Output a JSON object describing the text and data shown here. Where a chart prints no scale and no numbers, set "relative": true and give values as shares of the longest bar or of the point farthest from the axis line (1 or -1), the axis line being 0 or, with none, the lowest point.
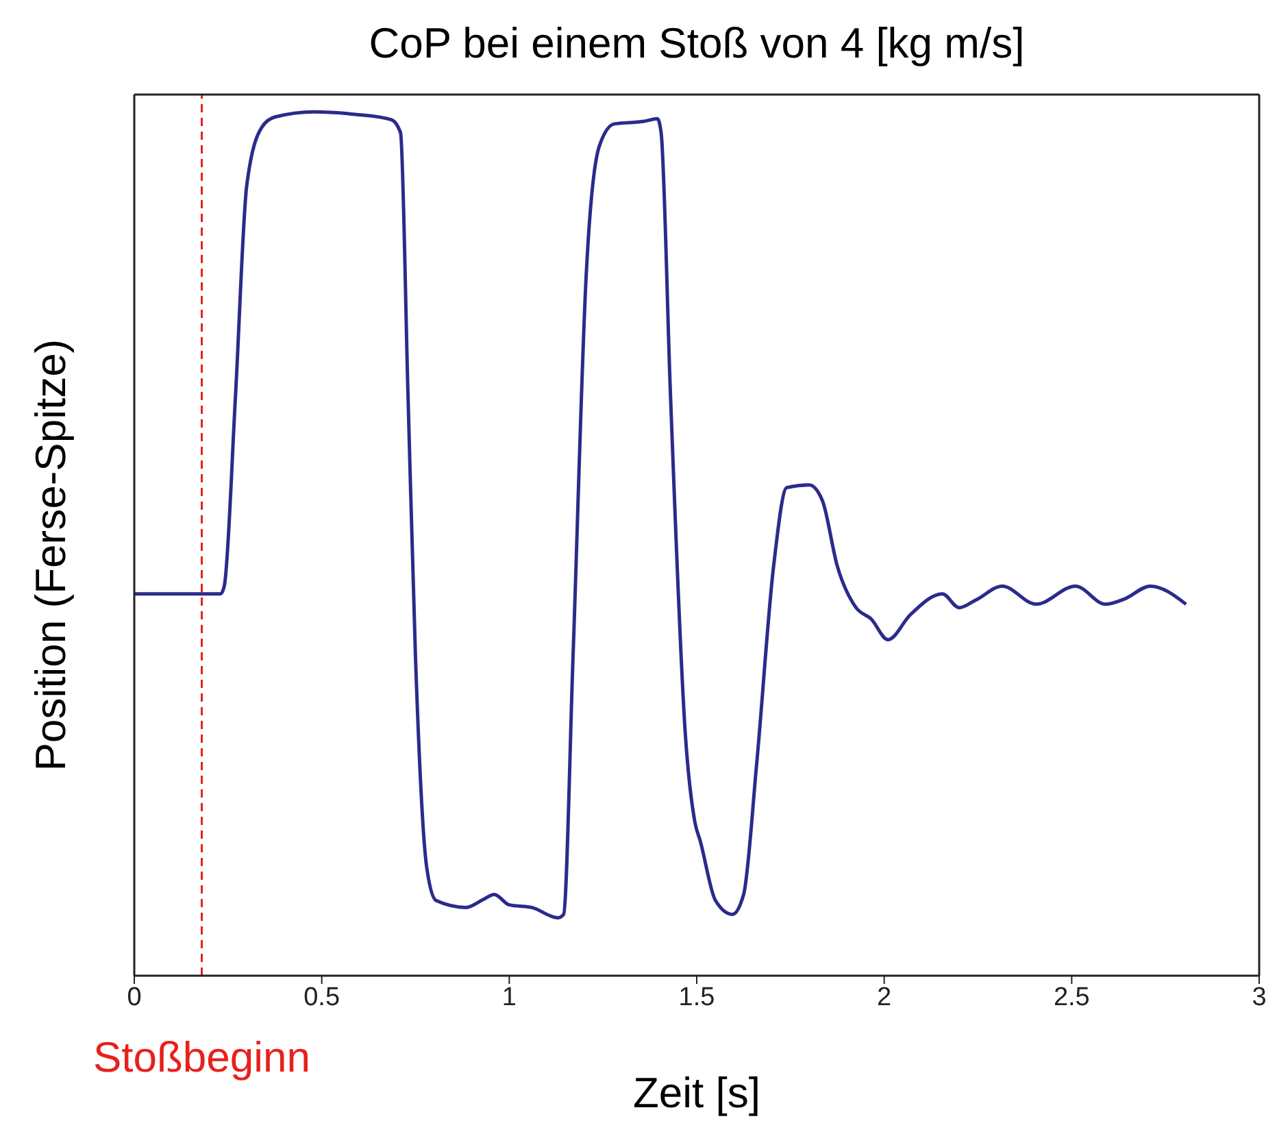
{
  "chart_data": {
    "type": "line",
    "title": "CoP bei einem Stoß von 4 [kg m/s]",
    "xlabel": "Zeit [s]",
    "ylabel": "Position (Ferse-Spitze)",
    "relative": true,
    "xlim": [
      0,
      3
    ],
    "xticks": [
      0,
      0.5,
      1,
      1.5,
      2,
      2.5,
      3
    ],
    "tick_labels": "x",
    "grid": false,
    "legend": false,
    "marker": "none",
    "line_style": "solid",
    "x": [
      0,
      0.23,
      0.24,
      0.27,
      0.3,
      0.34,
      0.375,
      0.48,
      0.59,
      0.685,
      0.71,
      0.73,
      0.75,
      0.78,
      0.805,
      0.885,
      0.93,
      0.96,
      1.0,
      1.06,
      1.13,
      1.145,
      1.17,
      1.205,
      1.24,
      1.28,
      1.36,
      1.395,
      1.405,
      1.43,
      1.47,
      1.495,
      1.51,
      1.55,
      1.595,
      1.625,
      1.66,
      1.705,
      1.74,
      1.8,
      1.835,
      1.875,
      1.925,
      1.965,
      2.01,
      2.07,
      2.155,
      2.2,
      2.245,
      2.315,
      2.405,
      2.51,
      2.59,
      2.64,
      2.71,
      2.805
    ],
    "series": [
      {
        "color": "#2b2b8c",
        "values": [
          0.442,
          0.442,
          0.451,
          0.672,
          0.915,
          0.982,
          0.994,
          1.0,
          0.997,
          0.991,
          0.976,
          0.672,
          0.368,
          0.125,
          0.087,
          0.079,
          0.088,
          0.094,
          0.082,
          0.079,
          0.067,
          0.071,
          0.368,
          0.809,
          0.96,
          0.986,
          0.989,
          0.992,
          0.976,
          0.672,
          0.277,
          0.178,
          0.155,
          0.087,
          0.071,
          0.094,
          0.246,
          0.474,
          0.565,
          0.568,
          0.55,
          0.474,
          0.426,
          0.413,
          0.389,
          0.418,
          0.442,
          0.426,
          0.435,
          0.451,
          0.43,
          0.451,
          0.43,
          0.436,
          0.451,
          0.43
        ]
      }
    ],
    "ref_lines": [
      {
        "axis": "x",
        "value": 0.18,
        "label": "Stoßbeginn",
        "color": "#e8201c",
        "line_style": "dashed"
      }
    ]
  }
}
